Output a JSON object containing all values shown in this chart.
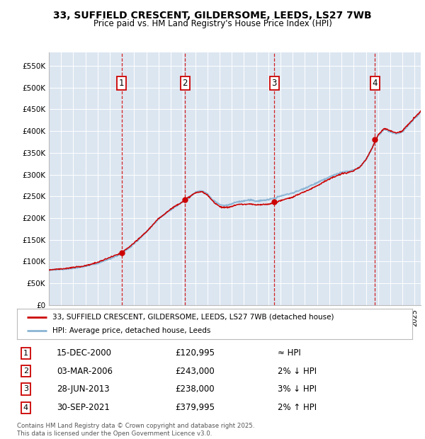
{
  "title_line1": "33, SUFFIELD CRESCENT, GILDERSOME, LEEDS, LS27 7WB",
  "title_line2": "Price paid vs. HM Land Registry's House Price Index (HPI)",
  "background_color": "#ffffff",
  "plot_bg_color": "#dce6f1",
  "grid_color": "#ffffff",
  "sale_color": "#cc0000",
  "hpi_color": "#8ab4d4",
  "sale_label": "33, SUFFIELD CRESCENT, GILDERSOME, LEEDS, LS27 7WB (detached house)",
  "hpi_label": "HPI: Average price, detached house, Leeds",
  "ylim": [
    0,
    580000
  ],
  "yticks": [
    0,
    50000,
    100000,
    150000,
    200000,
    250000,
    300000,
    350000,
    400000,
    450000,
    500000,
    550000
  ],
  "ytick_labels": [
    "£0",
    "£50K",
    "£100K",
    "£150K",
    "£200K",
    "£250K",
    "£300K",
    "£350K",
    "£400K",
    "£450K",
    "£500K",
    "£550K"
  ],
  "sales": [
    {
      "num": 1,
      "date_x": 2000.96,
      "price": 120995,
      "label": "15-DEC-2000",
      "price_str": "£120,995",
      "rel": "≈ HPI"
    },
    {
      "num": 2,
      "date_x": 2006.17,
      "price": 243000,
      "label": "03-MAR-2006",
      "price_str": "£243,000",
      "rel": "2% ↓ HPI"
    },
    {
      "num": 3,
      "date_x": 2013.49,
      "price": 238000,
      "label": "28-JUN-2013",
      "price_str": "£238,000",
      "rel": "3% ↓ HPI"
    },
    {
      "num": 4,
      "date_x": 2021.75,
      "price": 379995,
      "label": "30-SEP-2021",
      "price_str": "£379,995",
      "rel": "2% ↑ HPI"
    }
  ],
  "footer": "Contains HM Land Registry data © Crown copyright and database right 2025.\nThis data is licensed under the Open Government Licence v3.0.",
  "xmin": 1995.0,
  "xmax": 2025.5
}
